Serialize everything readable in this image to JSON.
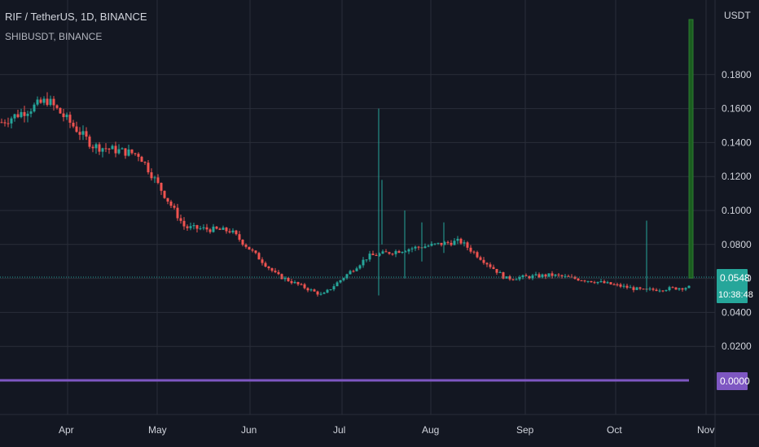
{
  "header": {
    "title": "RIF / TetherUS, 1D, BINANCE",
    "subtitle": "SHIBUSDT, BINANCE"
  },
  "axis": {
    "unit": "USDT"
  },
  "last_price_label": {
    "value": "0.0548",
    "countdown": "10:38:48"
  },
  "overlay_label": {
    "value": "0.0000"
  },
  "colors": {
    "background": "#131722",
    "grid": "#2a2e39",
    "up": "#26a69a",
    "down": "#ef5350",
    "overlay_line": "#7e57c2",
    "axis_text": "#d1d4dc",
    "spike_volume": "#1b5e20"
  },
  "chart_data": {
    "type": "candlestick",
    "title": "RIF / TetherUS, 1D, BINANCE",
    "secondary_series": {
      "name": "SHIBUSDT, BINANCE",
      "value": 0.0
    },
    "ylim": [
      0,
      0.2
    ],
    "y_ticks": [
      "0.0200",
      "0.0400",
      "0.0600",
      "0.0800",
      "0.1000",
      "0.1200",
      "0.1400",
      "0.1600",
      "0.1800"
    ],
    "x_ticks": [
      "Apr",
      "May",
      "Jun",
      "Jul",
      "Aug",
      "Sep",
      "Oct",
      "Nov"
    ],
    "last_price": 0.0548,
    "countdown": "10:38:48",
    "grid": true,
    "series_close": [
      {
        "month": "Mar (late)",
        "close": 0.152
      },
      {
        "month": "Apr",
        "close": 0.165
      },
      {
        "month": "Apr (mid)",
        "close": 0.138
      },
      {
        "month": "May",
        "close": 0.133
      },
      {
        "month": "May (late)",
        "close": 0.09
      },
      {
        "month": "Jun",
        "close": 0.088
      },
      {
        "month": "Jun (mid)",
        "close": 0.062
      },
      {
        "month": "Jul",
        "close": 0.05
      },
      {
        "month": "Jul (mid)",
        "close": 0.073
      },
      {
        "month": "Aug",
        "close": 0.078
      },
      {
        "month": "Aug (mid)",
        "close": 0.082
      },
      {
        "month": "Sep",
        "close": 0.06
      },
      {
        "month": "Sep (mid)",
        "close": 0.062
      },
      {
        "month": "Oct",
        "close": 0.058
      },
      {
        "month": "Oct (mid)",
        "close": 0.053
      },
      {
        "month": "Nov",
        "close": 0.0548
      }
    ]
  }
}
